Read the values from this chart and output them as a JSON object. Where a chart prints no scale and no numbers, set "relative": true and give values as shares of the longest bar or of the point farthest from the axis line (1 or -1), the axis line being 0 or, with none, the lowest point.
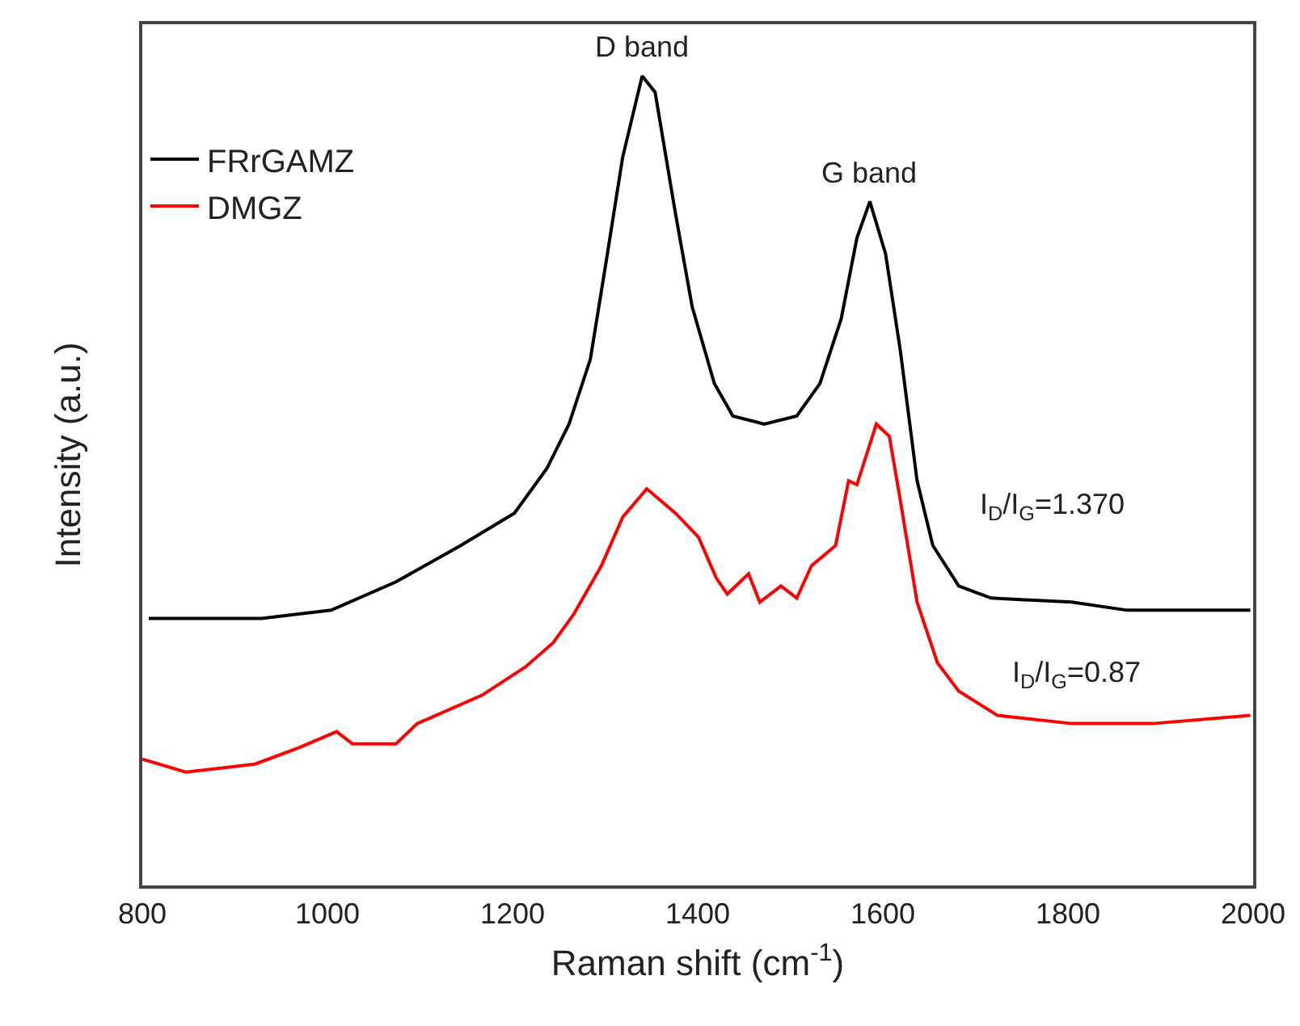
{
  "chart_data": {
    "type": "line",
    "relative": true,
    "xlabel": "Raman shift (cm$^{-1}$)",
    "ylabel": "Intensity (a.u.)",
    "xlim": [
      800,
      2000
    ],
    "xticks": [
      800,
      1000,
      1200,
      1400,
      1600,
      1800,
      2000
    ],
    "legend": "top left",
    "grid": false,
    "marker": "none",
    "line_style": "solid",
    "series": [
      {
        "name": "FRrGAMZ",
        "color": "#000000",
        "x": [
          807,
          929,
          1004,
          1074,
          1144,
          1202,
          1237,
          1261,
          1284,
          1301,
          1319,
          1340,
          1354,
          1376,
          1394,
          1418,
          1438,
          1472,
          1507,
          1532,
          1555,
          1572,
          1586,
          1603,
          1619,
          1637,
          1654,
          1682,
          1717,
          1804,
          1864,
          1997
        ],
        "values": [
          0.33,
          0.33,
          0.34,
          0.375,
          0.42,
          0.46,
          0.515,
          0.57,
          0.65,
          0.77,
          0.9,
          1,
          0.98,
          0.83,
          0.715,
          0.62,
          0.58,
          0.57,
          0.58,
          0.62,
          0.7,
          0.8,
          0.845,
          0.78,
          0.66,
          0.5,
          0.42,
          0.37,
          0.355,
          0.35,
          0.34,
          0.34
        ]
      },
      {
        "name": "DMGZ",
        "color": "#ff0000",
        "x": [
          800,
          847,
          922,
          969,
          1010,
          1027,
          1074,
          1097,
          1167,
          1214,
          1244,
          1266,
          1296,
          1319,
          1345,
          1376,
          1401,
          1420,
          1432,
          1455,
          1467,
          1490,
          1507,
          1523,
          1549,
          1563,
          1572,
          1593,
          1607,
          1619,
          1637,
          1659,
          1682,
          1724,
          1804,
          1892,
          1997
        ],
        "values": [
          0.156,
          0.14,
          0.15,
          0.17,
          0.19,
          0.175,
          0.175,
          0.2,
          0.235,
          0.27,
          0.3,
          0.335,
          0.395,
          0.455,
          0.49,
          0.46,
          0.43,
          0.38,
          0.36,
          0.385,
          0.35,
          0.37,
          0.355,
          0.395,
          0.42,
          0.5,
          0.495,
          0.57,
          0.555,
          0.475,
          0.35,
          0.275,
          0.24,
          0.21,
          0.2,
          0.2,
          0.21
        ]
      }
    ],
    "annotations": [
      {
        "text": "D band",
        "x": 1340,
        "y": 1
      },
      {
        "text": "G band",
        "x": 1586,
        "y": 0.845
      },
      "I$_{D}$/I$_{G}$=1.370",
      "I$_{D}$/I$_{G}$=0.87"
    ]
  }
}
